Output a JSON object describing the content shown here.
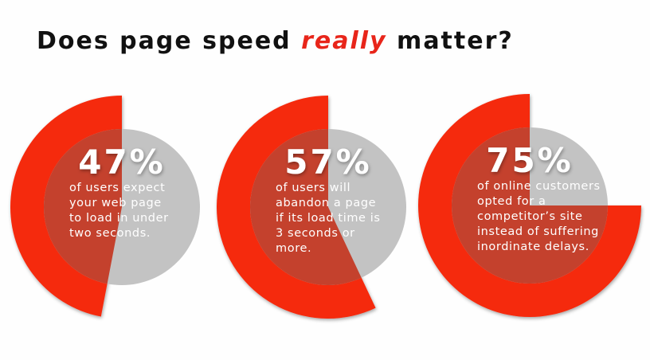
{
  "title": {
    "before": "Does page speed ",
    "highlight": "really",
    "after": " matter?"
  },
  "colors": {
    "red": "#f52a0e",
    "overlap": "#c4412d",
    "gray": "#c3c3c3",
    "highlight": "#e8251a"
  },
  "chart_data": [
    {
      "type": "pie",
      "value": 47,
      "unit": "%",
      "label": "47%",
      "lines": [
        "of users expect",
        "your web page",
        "to load in under",
        "two seconds."
      ]
    },
    {
      "type": "pie",
      "value": 57,
      "unit": "%",
      "label": "57%",
      "lines": [
        "of users will",
        "abandon a page",
        "if its load time is",
        "3 seconds or",
        "more."
      ]
    },
    {
      "type": "pie",
      "value": 75,
      "unit": "%",
      "label": "75%",
      "lines": [
        "of online customers",
        "opted for a",
        "competitor’s site",
        "instead of suffering",
        "inordinate delays."
      ]
    }
  ]
}
